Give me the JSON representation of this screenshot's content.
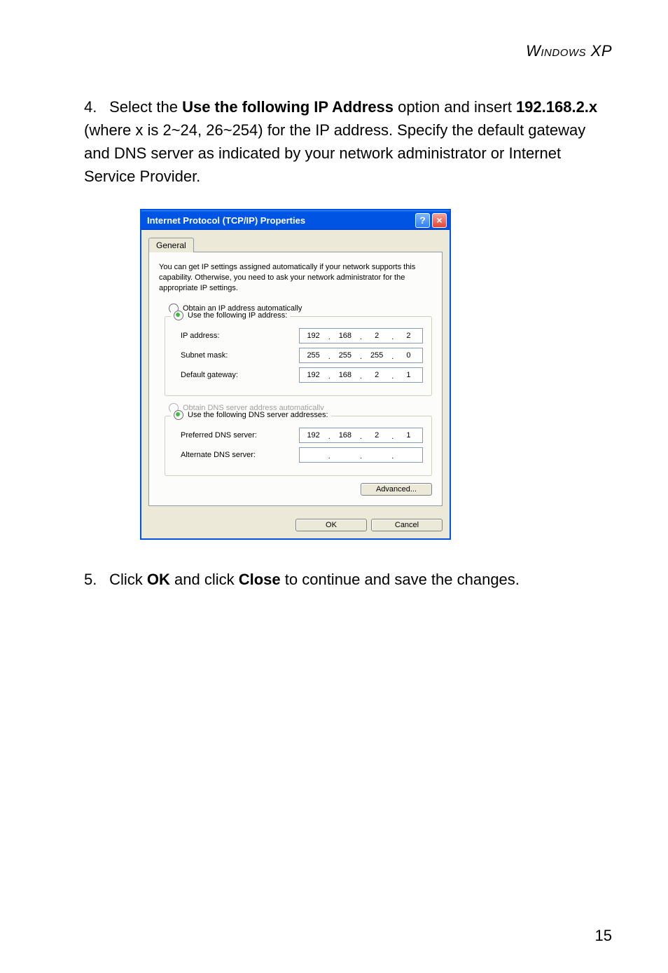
{
  "header": "Windows XP",
  "step4": {
    "num": "4.",
    "pre": "Select the ",
    "bold1": "Use the following IP Address",
    "mid1": " option and insert ",
    "bold2": "192.168.2.x",
    "mid2": " (where x is 2~24, 26~254) for the IP address. Specify the default gateway and DNS server as indicated by your network administrator or Internet Service Provider."
  },
  "dialog": {
    "title": "Internet Protocol (TCP/IP) Properties",
    "help_glyph": "?",
    "close_glyph": "×",
    "tab_label": "General",
    "description": "You can get IP settings assigned automatically if your network supports this capability. Otherwise, you need to ask your network administrator for the appropriate IP settings.",
    "radio_auto_ip": "Obtain an IP address automatically",
    "radio_manual_ip": "Use the following IP address:",
    "ip_label": "IP address:",
    "ip_value": [
      "192",
      "168",
      "2",
      "2"
    ],
    "subnet_label": "Subnet mask:",
    "subnet_value": [
      "255",
      "255",
      "255",
      "0"
    ],
    "gateway_label": "Default gateway:",
    "gateway_value": [
      "192",
      "168",
      "2",
      "1"
    ],
    "radio_auto_dns": "Obtain DNS server address automatically",
    "radio_manual_dns": "Use the following DNS server addresses:",
    "pref_dns_label": "Preferred DNS server:",
    "pref_dns_value": [
      "192",
      "168",
      "2",
      "1"
    ],
    "alt_dns_label": "Alternate DNS server:",
    "alt_dns_value": [
      "",
      "",
      "",
      ""
    ],
    "advanced_btn": "Advanced...",
    "ok_btn": "OK",
    "cancel_btn": "Cancel"
  },
  "step5": {
    "num": "5.",
    "pre": "Click ",
    "bold1": "OK",
    "mid": " and click ",
    "bold2": "Close",
    "post": " to continue and save the changes."
  },
  "page_number": "15",
  "colors": {
    "titlebar_blue": "#0054e3",
    "xp_bg": "#ece9d8",
    "panel_bg": "#fcfcfa",
    "radio_green": "#3cbf3c",
    "input_border": "#7f9db9"
  }
}
